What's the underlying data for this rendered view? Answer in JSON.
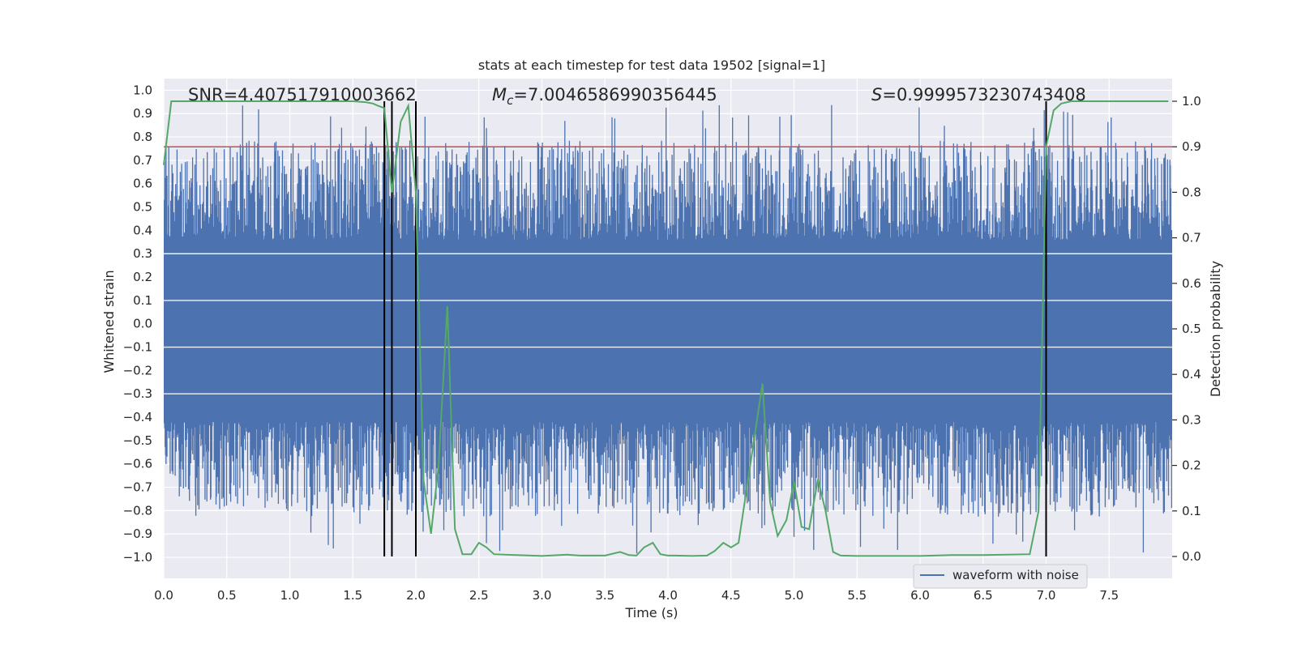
{
  "chart_data": {
    "type": "line",
    "title": "stats at each timestep for test data 19502 [signal=1]",
    "xlabel": "Time (s)",
    "ylabel_left": "Whitened strain",
    "ylabel_right": "Detection probability",
    "xlim": [
      0.0,
      8.0
    ],
    "ylim_left": [
      -1.09,
      1.05
    ],
    "ylim_right": [
      0.0,
      1.0
    ],
    "x_ticks": [
      "0.0",
      "0.5",
      "1.0",
      "1.5",
      "2.0",
      "2.5",
      "3.0",
      "3.5",
      "4.0",
      "4.5",
      "5.0",
      "5.5",
      "6.0",
      "6.5",
      "7.0",
      "7.5"
    ],
    "y_left_ticks": [
      "1.0",
      "0.9",
      "0.8",
      "0.7",
      "0.6",
      "0.5",
      "0.4",
      "0.3",
      "0.2",
      "0.1",
      "0.0",
      "-0.1",
      "-0.2",
      "-0.3",
      "-0.4",
      "-0.5",
      "-0.6",
      "-0.7",
      "-0.8",
      "-0.9",
      "-1.0"
    ],
    "y_right_ticks": [
      "0.0",
      "0.1",
      "0.2",
      "0.3",
      "0.4",
      "0.5",
      "0.6",
      "0.7",
      "0.8",
      "0.9",
      "1.0"
    ],
    "annotations": {
      "snr": "SNR=4.407517910003662",
      "mc_symbol": "M",
      "mc_sub": "c",
      "mc_value": "=7.0046586990356445",
      "s_symbol": "S",
      "s_value": "=0.9999573230743408"
    },
    "legend": [
      "waveform with noise"
    ],
    "threshold": 0.9,
    "vertical_lines": [
      1.75,
      1.81,
      2.0,
      7.0
    ],
    "waveform": {
      "name": "waveform with noise",
      "color": "#4c72b0",
      "core_band": [
        -0.42,
        0.36
      ],
      "spike_range": [
        -1.0,
        0.95
      ]
    },
    "detection_probability": {
      "color": "#55a868",
      "x": [
        0.0,
        0.06,
        0.12,
        0.2,
        0.4,
        0.8,
        1.2,
        1.5,
        1.6,
        1.66,
        1.7,
        1.75,
        1.81,
        1.88,
        1.94,
        2.0,
        2.06,
        2.12,
        2.18,
        2.25,
        2.31,
        2.37,
        2.44,
        2.5,
        2.56,
        2.62,
        2.8,
        3.0,
        3.2,
        3.3,
        3.5,
        3.62,
        3.69,
        3.75,
        3.81,
        3.88,
        3.94,
        4.0,
        4.06,
        4.19,
        4.31,
        4.37,
        4.44,
        4.5,
        4.56,
        4.62,
        4.75,
        4.81,
        4.87,
        4.94,
        5.0,
        5.06,
        5.12,
        5.19,
        5.25,
        5.31,
        5.37,
        5.5,
        6.0,
        6.25,
        6.5,
        6.87,
        6.94,
        7.0,
        7.06,
        7.12,
        7.2,
        7.5,
        7.97
      ],
      "y": [
        0.86,
        1.0,
        1.0,
        1.0,
        1.0,
        1.0,
        1.0,
        1.0,
        0.998,
        0.995,
        0.99,
        0.985,
        0.8,
        0.955,
        0.99,
        0.8,
        0.17,
        0.05,
        0.2,
        0.55,
        0.06,
        0.005,
        0.005,
        0.03,
        0.02,
        0.005,
        0.003,
        0.001,
        0.004,
        0.002,
        0.002,
        0.01,
        0.003,
        0.002,
        0.02,
        0.03,
        0.005,
        0.002,
        0.002,
        0.001,
        0.002,
        0.012,
        0.03,
        0.02,
        0.03,
        0.14,
        0.38,
        0.12,
        0.045,
        0.08,
        0.165,
        0.065,
        0.06,
        0.17,
        0.1,
        0.01,
        0.002,
        0.001,
        0.001,
        0.003,
        0.003,
        0.005,
        0.1,
        0.9,
        0.98,
        0.995,
        1.0,
        1.0,
        1.0
      ]
    },
    "colors": {
      "background": "#eaeaf2",
      "grid": "#ffffff",
      "threshold": "#c44e52",
      "vline": "#000000",
      "waveform": "#4c72b0",
      "probability": "#55a868"
    }
  }
}
